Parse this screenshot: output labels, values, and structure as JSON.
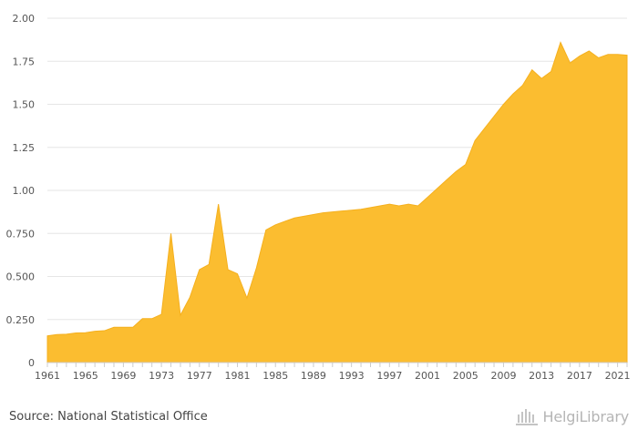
{
  "chart_data": {
    "type": "area",
    "title": "",
    "xlabel": "",
    "ylabel": "",
    "x": [
      1961,
      1962,
      1963,
      1964,
      1965,
      1966,
      1967,
      1968,
      1969,
      1970,
      1971,
      1972,
      1973,
      1974,
      1975,
      1976,
      1977,
      1978,
      1979,
      1980,
      1981,
      1982,
      1983,
      1984,
      1985,
      1986,
      1987,
      1988,
      1989,
      1990,
      1991,
      1992,
      1993,
      1994,
      1995,
      1996,
      1997,
      1998,
      1999,
      2000,
      2001,
      2002,
      2003,
      2004,
      2005,
      2006,
      2007,
      2008,
      2009,
      2010,
      2011,
      2012,
      2013,
      2014,
      2015,
      2016,
      2017,
      2018,
      2019,
      2020,
      2021,
      2022
    ],
    "values": [
      0.155,
      0.163,
      0.165,
      0.172,
      0.173,
      0.182,
      0.185,
      0.205,
      0.205,
      0.205,
      0.255,
      0.255,
      0.28,
      0.75,
      0.275,
      0.38,
      0.54,
      0.57,
      0.92,
      0.54,
      0.515,
      0.375,
      0.55,
      0.77,
      0.8,
      0.82,
      0.84,
      0.85,
      0.86,
      0.87,
      0.875,
      0.88,
      0.885,
      0.89,
      0.9,
      0.91,
      0.92,
      0.91,
      0.92,
      0.91,
      0.96,
      1.01,
      1.06,
      1.11,
      1.15,
      1.29,
      1.36,
      1.43,
      1.5,
      1.56,
      1.61,
      1.7,
      1.65,
      1.69,
      1.86,
      1.74,
      1.78,
      1.81,
      1.77,
      1.79,
      1.79,
      1.785
    ],
    "x_ticks": [
      "1961",
      "1965",
      "1969",
      "1973",
      "1977",
      "1981",
      "1985",
      "1989",
      "1993",
      "1997",
      "2001",
      "2005",
      "2009",
      "2013",
      "2017",
      "2021"
    ],
    "y_ticks": [
      "0",
      "0.250",
      "0.500",
      "0.750",
      "1.00",
      "1.25",
      "1.50",
      "1.75",
      "2.00"
    ],
    "y_tick_values": [
      0,
      0.25,
      0.5,
      0.75,
      1.0,
      1.25,
      1.5,
      1.75,
      2.0
    ],
    "ylim": [
      0,
      2.0
    ],
    "xlim": [
      1961,
      2022
    ],
    "grid": true,
    "fill_color": "#fbbd30",
    "stroke_color": "#f5b01e"
  },
  "footer": {
    "source": "Source: National Statistical Office",
    "logo_text": "HelgiLibrary"
  }
}
